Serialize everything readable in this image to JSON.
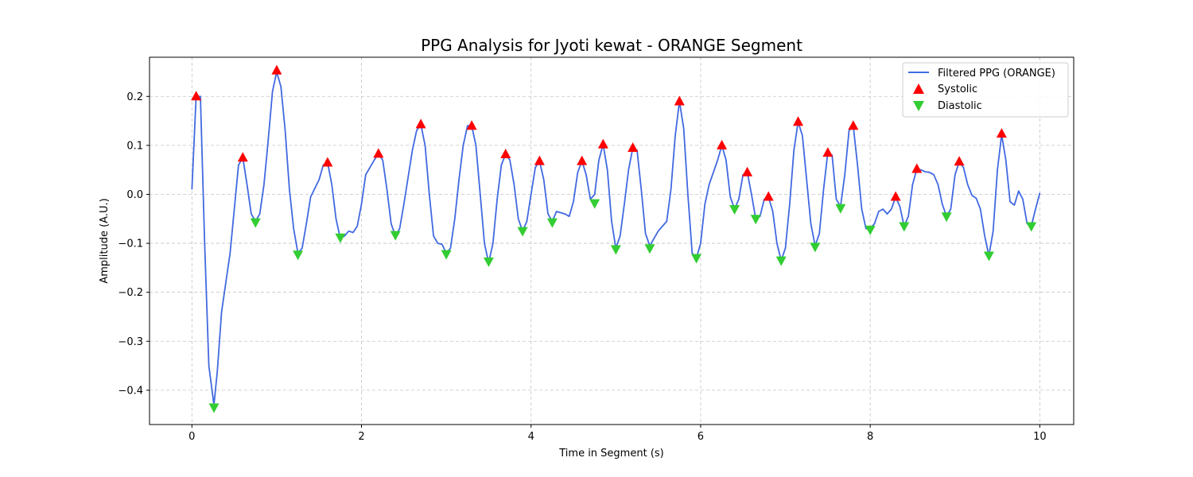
{
  "chart_data": {
    "type": "line",
    "title": "PPG Analysis for Jyoti kewat - ORANGE Segment",
    "xlabel": "Time in Segment (s)",
    "ylabel": "Amplitude (A.U.)",
    "xlim": [
      -0.5,
      10.4
    ],
    "ylim": [
      -0.47,
      0.28
    ],
    "x_ticks": [
      0,
      2,
      4,
      6,
      8,
      10
    ],
    "x_tick_labels": [
      "0",
      "2",
      "4",
      "6",
      "8",
      "10"
    ],
    "y_ticks": [
      -0.4,
      -0.3,
      -0.2,
      -0.1,
      0.0,
      0.1,
      0.2
    ],
    "y_tick_labels": [
      "−0.4",
      "−0.3",
      "−0.2",
      "−0.1",
      "0.0",
      "0.1",
      "0.2"
    ],
    "grid": true,
    "legend": "top-right",
    "series": [
      {
        "name": "Filtered PPG (ORANGE)",
        "kind": "line",
        "color": "#4169e1",
        "points": [
          [
            0.0,
            0.01
          ],
          [
            0.05,
            0.2
          ],
          [
            0.1,
            0.2
          ],
          [
            0.15,
            -0.1
          ],
          [
            0.2,
            -0.35
          ],
          [
            0.26,
            -0.43
          ],
          [
            0.3,
            -0.36
          ],
          [
            0.35,
            -0.24
          ],
          [
            0.45,
            -0.12
          ],
          [
            0.55,
            0.06
          ],
          [
            0.6,
            0.075
          ],
          [
            0.65,
            0.02
          ],
          [
            0.7,
            -0.04
          ],
          [
            0.75,
            -0.055
          ],
          [
            0.8,
            -0.04
          ],
          [
            0.85,
            0.02
          ],
          [
            0.9,
            0.11
          ],
          [
            0.95,
            0.21
          ],
          [
            1.0,
            0.25
          ],
          [
            1.05,
            0.22
          ],
          [
            1.1,
            0.13
          ],
          [
            1.15,
            0.01
          ],
          [
            1.2,
            -0.07
          ],
          [
            1.25,
            -0.12
          ],
          [
            1.3,
            -0.11
          ],
          [
            1.35,
            -0.06
          ],
          [
            1.4,
            -0.005
          ],
          [
            1.5,
            0.03
          ],
          [
            1.55,
            0.06
          ],
          [
            1.6,
            0.065
          ],
          [
            1.65,
            0.02
          ],
          [
            1.7,
            -0.05
          ],
          [
            1.75,
            -0.09
          ],
          [
            1.8,
            -0.085
          ],
          [
            1.85,
            -0.075
          ],
          [
            1.9,
            -0.078
          ],
          [
            1.95,
            -0.065
          ],
          [
            2.0,
            -0.02
          ],
          [
            2.05,
            0.04
          ],
          [
            2.1,
            0.055
          ],
          [
            2.15,
            0.07
          ],
          [
            2.2,
            0.083
          ],
          [
            2.25,
            0.07
          ],
          [
            2.3,
            0.01
          ],
          [
            2.35,
            -0.06
          ],
          [
            2.4,
            -0.085
          ],
          [
            2.45,
            -0.07
          ],
          [
            2.5,
            -0.02
          ],
          [
            2.6,
            0.09
          ],
          [
            2.65,
            0.13
          ],
          [
            2.7,
            0.143
          ],
          [
            2.75,
            0.1
          ],
          [
            2.8,
            0.0
          ],
          [
            2.85,
            -0.085
          ],
          [
            2.9,
            -0.1
          ],
          [
            2.95,
            -0.102
          ],
          [
            3.0,
            -0.12
          ],
          [
            3.05,
            -0.11
          ],
          [
            3.1,
            -0.05
          ],
          [
            3.15,
            0.03
          ],
          [
            3.2,
            0.1
          ],
          [
            3.25,
            0.14
          ],
          [
            3.3,
            0.14
          ],
          [
            3.35,
            0.1
          ],
          [
            3.4,
            0.0
          ],
          [
            3.45,
            -0.1
          ],
          [
            3.5,
            -0.14
          ],
          [
            3.55,
            -0.1
          ],
          [
            3.6,
            -0.01
          ],
          [
            3.65,
            0.06
          ],
          [
            3.7,
            0.082
          ],
          [
            3.75,
            0.07
          ],
          [
            3.8,
            0.02
          ],
          [
            3.85,
            -0.05
          ],
          [
            3.9,
            -0.075
          ],
          [
            3.95,
            -0.055
          ],
          [
            4.0,
            0.0
          ],
          [
            4.05,
            0.055
          ],
          [
            4.1,
            0.068
          ],
          [
            4.15,
            0.03
          ],
          [
            4.2,
            -0.04
          ],
          [
            4.25,
            -0.055
          ],
          [
            4.3,
            -0.035
          ],
          [
            4.4,
            -0.04
          ],
          [
            4.45,
            -0.045
          ],
          [
            4.5,
            -0.015
          ],
          [
            4.55,
            0.045
          ],
          [
            4.6,
            0.068
          ],
          [
            4.65,
            0.04
          ],
          [
            4.7,
            -0.01
          ],
          [
            4.75,
            0.0
          ],
          [
            4.8,
            0.07
          ],
          [
            4.85,
            0.102
          ],
          [
            4.9,
            0.05
          ],
          [
            4.95,
            -0.055
          ],
          [
            5.0,
            -0.11
          ],
          [
            5.05,
            -0.085
          ],
          [
            5.1,
            -0.02
          ],
          [
            5.15,
            0.05
          ],
          [
            5.2,
            0.095
          ],
          [
            5.25,
            0.09
          ],
          [
            5.3,
            0.01
          ],
          [
            5.35,
            -0.08
          ],
          [
            5.4,
            -0.105
          ],
          [
            5.45,
            -0.09
          ],
          [
            5.5,
            -0.075
          ],
          [
            5.6,
            -0.055
          ],
          [
            5.65,
            0.01
          ],
          [
            5.7,
            0.12
          ],
          [
            5.75,
            0.19
          ],
          [
            5.8,
            0.135
          ],
          [
            5.85,
            0.0
          ],
          [
            5.9,
            -0.12
          ],
          [
            5.95,
            -0.13
          ],
          [
            6.0,
            -0.1
          ],
          [
            6.05,
            -0.02
          ],
          [
            6.1,
            0.02
          ],
          [
            6.2,
            0.07
          ],
          [
            6.25,
            0.1
          ],
          [
            6.3,
            0.07
          ],
          [
            6.35,
            -0.005
          ],
          [
            6.4,
            -0.03
          ],
          [
            6.45,
            -0.01
          ],
          [
            6.5,
            0.04
          ],
          [
            6.55,
            0.045
          ],
          [
            6.6,
            0.0
          ],
          [
            6.65,
            -0.05
          ],
          [
            6.7,
            -0.045
          ],
          [
            6.75,
            -0.01
          ],
          [
            6.8,
            -0.005
          ],
          [
            6.85,
            -0.035
          ],
          [
            6.9,
            -0.1
          ],
          [
            6.95,
            -0.135
          ],
          [
            7.0,
            -0.11
          ],
          [
            7.05,
            -0.02
          ],
          [
            7.1,
            0.09
          ],
          [
            7.15,
            0.148
          ],
          [
            7.2,
            0.12
          ],
          [
            7.25,
            0.03
          ],
          [
            7.3,
            -0.06
          ],
          [
            7.35,
            -0.105
          ],
          [
            7.4,
            -0.08
          ],
          [
            7.45,
            0.01
          ],
          [
            7.5,
            0.085
          ],
          [
            7.55,
            0.08
          ],
          [
            7.6,
            -0.01
          ],
          [
            7.65,
            -0.025
          ],
          [
            7.7,
            0.04
          ],
          [
            7.75,
            0.13
          ],
          [
            7.8,
            0.14
          ],
          [
            7.85,
            0.06
          ],
          [
            7.9,
            -0.03
          ],
          [
            7.95,
            -0.07
          ],
          [
            8.0,
            -0.07
          ],
          [
            8.05,
            -0.06
          ],
          [
            8.1,
            -0.035
          ],
          [
            8.15,
            -0.03
          ],
          [
            8.2,
            -0.04
          ],
          [
            8.25,
            -0.03
          ],
          [
            8.3,
            -0.005
          ],
          [
            8.35,
            -0.025
          ],
          [
            8.4,
            -0.065
          ],
          [
            8.45,
            -0.045
          ],
          [
            8.5,
            0.02
          ],
          [
            8.55,
            0.052
          ],
          [
            8.6,
            0.05
          ],
          [
            8.65,
            0.046
          ],
          [
            8.7,
            0.045
          ],
          [
            8.75,
            0.04
          ],
          [
            8.8,
            0.02
          ],
          [
            8.85,
            -0.02
          ],
          [
            8.9,
            -0.045
          ],
          [
            8.95,
            -0.03
          ],
          [
            9.0,
            0.04
          ],
          [
            9.05,
            0.067
          ],
          [
            9.1,
            0.055
          ],
          [
            9.15,
            0.02
          ],
          [
            9.2,
            -0.002
          ],
          [
            9.25,
            -0.008
          ],
          [
            9.3,
            -0.03
          ],
          [
            9.35,
            -0.085
          ],
          [
            9.4,
            -0.125
          ],
          [
            9.45,
            -0.075
          ],
          [
            9.5,
            0.05
          ],
          [
            9.55,
            0.122
          ],
          [
            9.6,
            0.07
          ],
          [
            9.65,
            -0.015
          ],
          [
            9.7,
            -0.022
          ],
          [
            9.75,
            0.007
          ],
          [
            9.8,
            -0.01
          ],
          [
            9.85,
            -0.06
          ],
          [
            9.9,
            -0.065
          ],
          [
            9.95,
            -0.03
          ],
          [
            10.0,
            0.003
          ]
        ]
      },
      {
        "name": "Systolic",
        "kind": "marker-up",
        "color": "#ff0000",
        "points": [
          [
            0.05,
            0.2
          ],
          [
            0.6,
            0.075
          ],
          [
            1.0,
            0.253
          ],
          [
            1.6,
            0.065
          ],
          [
            2.2,
            0.083
          ],
          [
            2.7,
            0.143
          ],
          [
            3.3,
            0.14
          ],
          [
            3.7,
            0.082
          ],
          [
            4.1,
            0.068
          ],
          [
            4.6,
            0.068
          ],
          [
            4.85,
            0.102
          ],
          [
            5.2,
            0.095
          ],
          [
            5.75,
            0.19
          ],
          [
            6.25,
            0.1
          ],
          [
            6.55,
            0.045
          ],
          [
            6.8,
            -0.005
          ],
          [
            7.15,
            0.148
          ],
          [
            7.5,
            0.085
          ],
          [
            7.8,
            0.14
          ],
          [
            8.3,
            -0.005
          ],
          [
            8.55,
            0.052
          ],
          [
            9.05,
            0.067
          ],
          [
            9.55,
            0.124
          ]
        ]
      },
      {
        "name": "Diastolic",
        "kind": "marker-down",
        "color": "#32cd32",
        "points": [
          [
            0.26,
            -0.435
          ],
          [
            0.75,
            -0.057
          ],
          [
            1.25,
            -0.123
          ],
          [
            1.75,
            -0.088
          ],
          [
            2.4,
            -0.083
          ],
          [
            3.0,
            -0.122
          ],
          [
            3.5,
            -0.137
          ],
          [
            3.9,
            -0.075
          ],
          [
            4.25,
            -0.057
          ],
          [
            4.75,
            -0.018
          ],
          [
            5.0,
            -0.112
          ],
          [
            5.4,
            -0.11
          ],
          [
            5.95,
            -0.13
          ],
          [
            6.4,
            -0.03
          ],
          [
            6.65,
            -0.05
          ],
          [
            6.95,
            -0.135
          ],
          [
            7.35,
            -0.107
          ],
          [
            7.65,
            -0.028
          ],
          [
            8.0,
            -0.072
          ],
          [
            8.4,
            -0.065
          ],
          [
            8.9,
            -0.045
          ],
          [
            9.4,
            -0.125
          ],
          [
            9.9,
            -0.065
          ]
        ]
      }
    ]
  }
}
